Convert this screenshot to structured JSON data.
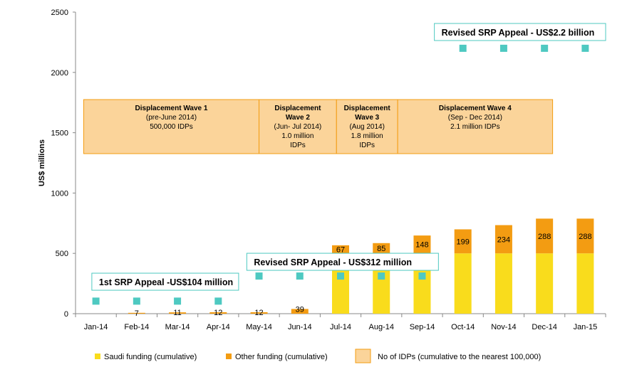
{
  "chart_data": {
    "type": "bar",
    "ylabel": "US$ millions",
    "ylim": [
      0,
      2500
    ],
    "yticks": [
      0,
      500,
      1000,
      1500,
      2000,
      2500
    ],
    "categories": [
      "Jan-14",
      "Feb-14",
      "Mar-14",
      "Apr-14",
      "May-14",
      "Jun-14",
      "Jul-14",
      "Aug-14",
      "Sep-14",
      "Oct-14",
      "Nov-14",
      "Dec-14",
      "Jan-15"
    ],
    "series": [
      {
        "name": "Saudi funding (cumulative)",
        "color": "#f9dc1c",
        "values": [
          0,
          0,
          0,
          0,
          0,
          0,
          500,
          500,
          500,
          500,
          500,
          500,
          500
        ]
      },
      {
        "name": "Other funding (cumulative)",
        "color": "#f39c12",
        "values": [
          0,
          7,
          11,
          12,
          12,
          39,
          67,
          85,
          148,
          199,
          234,
          288,
          288
        ]
      }
    ],
    "data_labels": [
      "",
      "7",
      "11",
      "12",
      "12",
      "39",
      "67",
      "85",
      "148",
      "199",
      "234",
      "288",
      "288"
    ],
    "appeal_markers": {
      "color": "#4ec9c1",
      "values": [
        104,
        104,
        104,
        104,
        312,
        312,
        312,
        312,
        312,
        2200,
        2200,
        2200,
        2200
      ]
    },
    "appeal_labels": [
      {
        "text": "1st SRP Appeal -US$104 million"
      },
      {
        "text": "Revised SRP Appeal - US$312 million"
      },
      {
        "text": "Revised SRP Appeal  - US$2.2 billion"
      }
    ],
    "displacement_waves": [
      {
        "title": "Displacement Wave 1",
        "lines": [
          "(pre-June 2014)",
          "500,000 IDPs"
        ]
      },
      {
        "title": "Displacement Wave 2",
        "lines": [
          "(Jun- Jul 2014)",
          "1.0 million IDPs"
        ]
      },
      {
        "title": "Displacement Wave 3",
        "lines": [
          "(Aug 2014)",
          "1.8 million IDPs"
        ]
      },
      {
        "title": "Displacement Wave 4",
        "lines": [
          "(Sep - Dec 2014)",
          "2.1 million IDPs"
        ]
      }
    ],
    "legend": [
      {
        "label": "Saudi funding (cumulative)",
        "color": "#f9dc1c"
      },
      {
        "label": "Other funding (cumulative)",
        "color": "#f39c12"
      },
      {
        "label": "No of IDPs (cumulative to the nearest 100,000)",
        "color": "#fbd49a",
        "border": "#f39c12"
      }
    ]
  }
}
